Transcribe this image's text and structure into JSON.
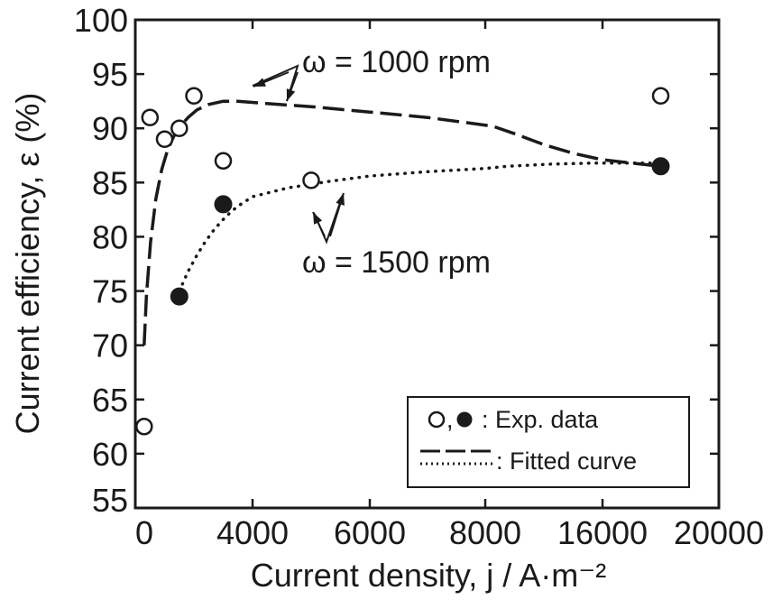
{
  "chart_data": {
    "type": "scatter",
    "xlabel": "Current density, j / A·m⁻²",
    "ylabel": "Current efficiency, ε (%)",
    "x_tick_labels": [
      "0",
      "4000",
      "6000",
      "8000",
      "16000",
      "20000"
    ],
    "y_tick_labels": [
      "55",
      "60",
      "65",
      "70",
      "75",
      "80",
      "85",
      "90",
      "95",
      "100"
    ],
    "ylim": [
      55,
      100
    ],
    "grid": false,
    "legend_position": "bottom-right",
    "series": [
      {
        "name": "ω = 1000 rpm",
        "marker": "open-circle",
        "x": [
          300,
          500,
          1000,
          1500,
          2000,
          3000,
          5000,
          18000
        ],
        "y": [
          62.5,
          91,
          89,
          90,
          93,
          87,
          85.2,
          93
        ]
      },
      {
        "name": "ω = 1500 rpm",
        "marker": "filled-circle",
        "x": [
          1500,
          3000,
          18000
        ],
        "y": [
          74.5,
          83,
          86.5
        ]
      }
    ],
    "fitted_curves": [
      {
        "series": "ω = 1000 rpm",
        "style": "dashed",
        "x": [
          300,
          380,
          520,
          700,
          900,
          1100,
          1300,
          1500,
          1800,
          2100,
          2500,
          3000,
          3500,
          4200,
          5000,
          6000,
          7000,
          8500,
          10000,
          12000,
          14000,
          16000,
          18000
        ],
        "y": [
          70,
          74.5,
          79.5,
          83.5,
          86.2,
          88,
          89.2,
          90.1,
          91,
          91.7,
          92.2,
          92.5,
          92.5,
          92.3,
          92,
          91.5,
          91,
          90.2,
          89.5,
          88.5,
          87.7,
          87.1,
          86.5
        ]
      },
      {
        "series": "ω = 1500 rpm",
        "style": "dotted",
        "x": [
          1500,
          1800,
          2100,
          2400,
          2700,
          3000,
          3300,
          3600,
          4000,
          4600,
          5300,
          6000,
          7000,
          8000,
          9500,
          11000,
          12500,
          14000,
          15500,
          16500,
          17500,
          18000
        ],
        "y": [
          75,
          76.8,
          78.3,
          79.6,
          80.7,
          81.6,
          82.4,
          83,
          83.7,
          84.5,
          85.1,
          85.6,
          86,
          86.3,
          86.5,
          86.6,
          86.7,
          86.75,
          86.8,
          86.8,
          86.8,
          86.8
        ]
      }
    ],
    "annotations": [
      "ω = 1000 rpm",
      "ω = 1500 rpm"
    ],
    "legend": {
      "entries": [
        {
          "label": ": Exp. data",
          "symbol": "○,●"
        },
        {
          "label": ": Fitted curve",
          "symbol": "dashed / dotted"
        }
      ]
    }
  }
}
